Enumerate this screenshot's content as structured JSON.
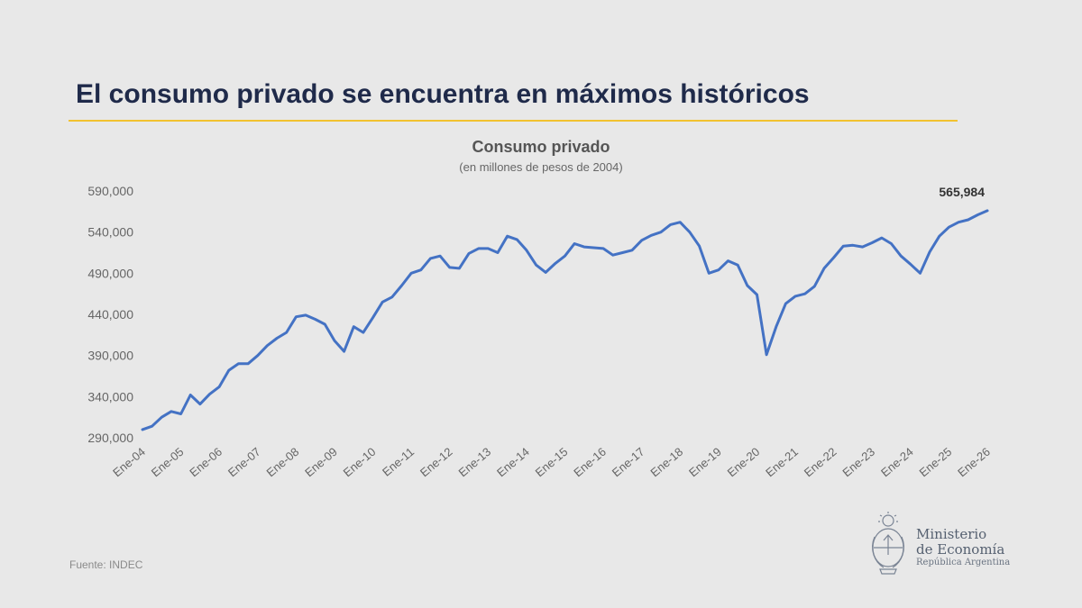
{
  "headline": "El consumo privado se encuentra en máximos históricos",
  "colors": {
    "background": "#e8e8e8",
    "headline": "#1f2a4a",
    "accent_rule": "#f2c230",
    "series_line": "#4472c4",
    "axis_text": "#666666"
  },
  "source": "Fuente: INDEC",
  "logo": {
    "line1": "Ministerio",
    "line2": "de Economía",
    "line3": "República Argentina",
    "icon": "coat-of-arms-icon"
  },
  "chart_data": {
    "type": "line",
    "title": "Consumo privado",
    "subtitle": "(en millones de pesos de 2004)",
    "xlabel": "",
    "ylabel": "",
    "ylim": [
      290000,
      590000
    ],
    "yticks": [
      290000,
      340000,
      390000,
      440000,
      490000,
      540000,
      590000
    ],
    "ytick_labels": [
      "290,000",
      "340,000",
      "390,000",
      "440,000",
      "490,000",
      "540,000",
      "590,000"
    ],
    "xtick_labels": [
      "Ene-04",
      "Ene-05",
      "Ene-06",
      "Ene-07",
      "Ene-08",
      "Ene-09",
      "Ene-10",
      "Ene-11",
      "Ene-12",
      "Ene-13",
      "Ene-14",
      "Ene-15",
      "Ene-16",
      "Ene-17",
      "Ene-18",
      "Ene-19",
      "Ene-20",
      "Ene-21",
      "Ene-22",
      "Ene-23",
      "Ene-24",
      "Ene-25",
      "Ene-26"
    ],
    "frequency": "quarterly",
    "grid": false,
    "legend": "none",
    "series": [
      {
        "values": [
          300000,
          304000,
          315000,
          322000,
          319000,
          342000,
          331000,
          343000,
          352000,
          372000,
          380000,
          380000,
          390000,
          402000,
          411000,
          418000,
          437000,
          439000,
          434000,
          428000,
          408000,
          395000,
          425000,
          418000,
          436000,
          455000,
          461000,
          475000,
          490000,
          494000,
          508000,
          511000,
          497000,
          496000,
          514000,
          520000,
          520000,
          515000,
          535000,
          531000,
          518000,
          500000,
          491000,
          502000,
          511000,
          526000,
          522000,
          521000,
          520000,
          512000,
          515000,
          518000,
          530000,
          536000,
          540000,
          549000,
          552000,
          540000,
          523000,
          490000,
          494000,
          505000,
          500000,
          475000,
          464000,
          391000,
          425000,
          453000,
          462000,
          465000,
          474000,
          496000,
          509000,
          523000,
          524000,
          522000,
          527000,
          533000,
          526000,
          511000,
          501000,
          490000,
          516000,
          535000,
          546000,
          552000,
          555000,
          561000,
          565984
        ]
      }
    ],
    "annotations": [
      {
        "text": "565,984",
        "target": "last-point"
      }
    ]
  }
}
